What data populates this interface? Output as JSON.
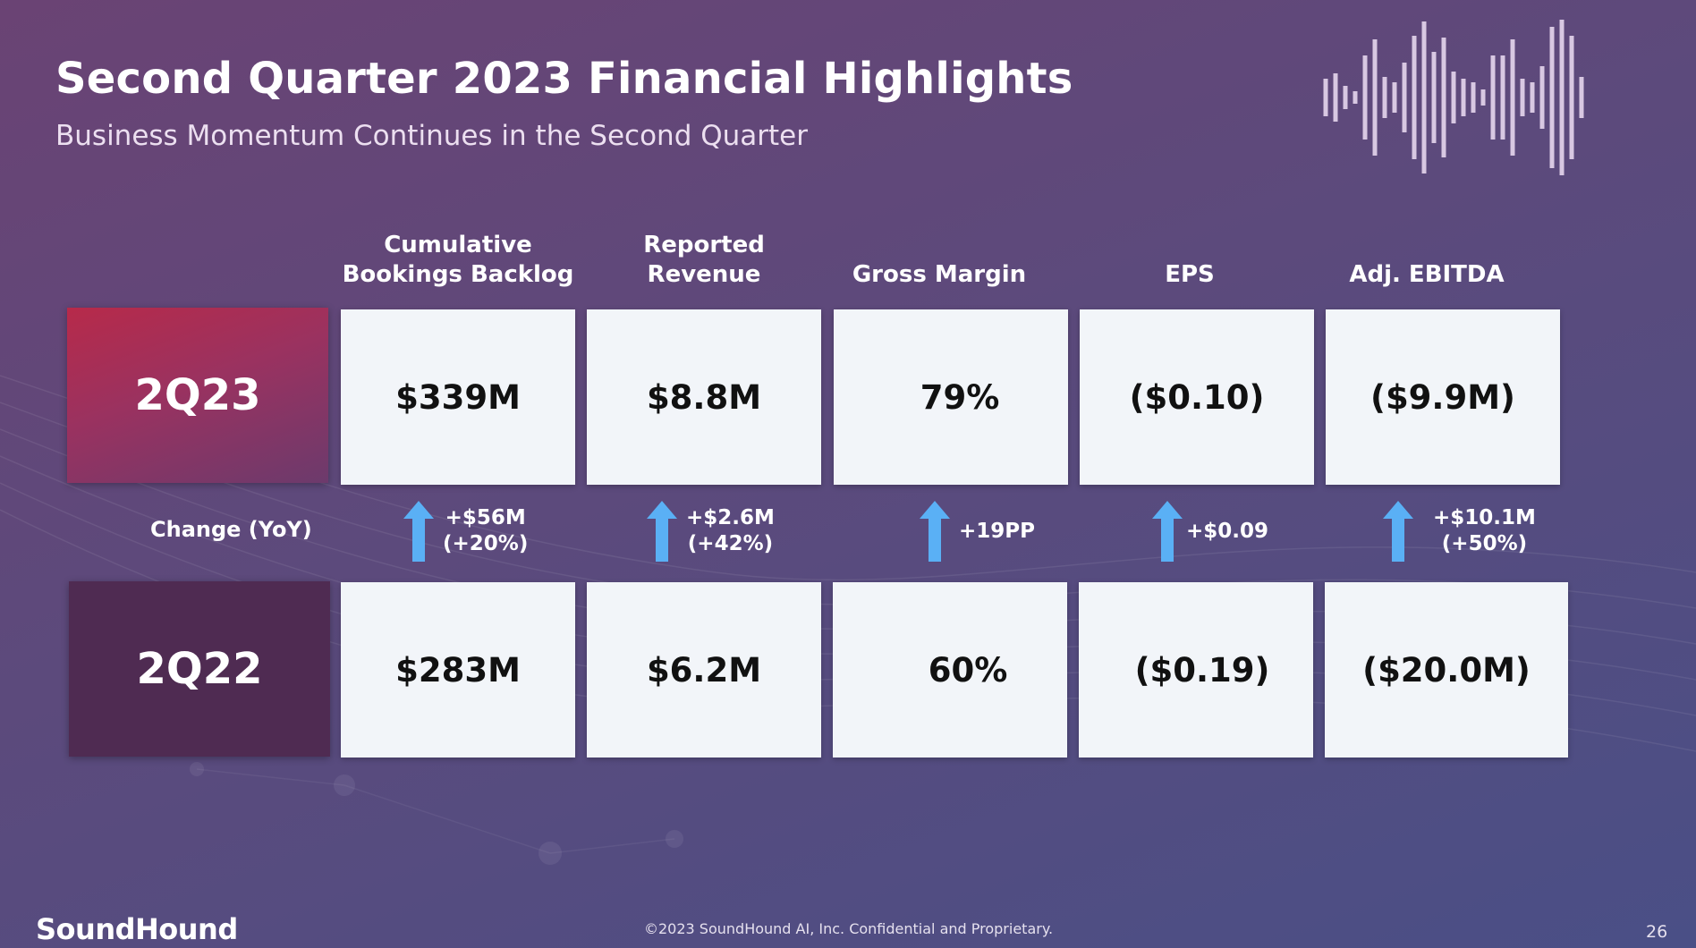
{
  "title": "Second Quarter 2023 Financial Highlights",
  "subtitle": "Business Momentum Continues in the Second Quarter",
  "columns": [
    {
      "line1": "Cumulative",
      "line2": "Bookings Backlog"
    },
    {
      "line1": "Reported",
      "line2": "Revenue"
    },
    {
      "line1": "",
      "line2": "Gross Margin"
    },
    {
      "line1": "",
      "line2": "EPS"
    },
    {
      "line1": "",
      "line2": "Adj. EBITDA"
    }
  ],
  "rows": {
    "current": {
      "label": "2Q23",
      "values": [
        "$339M",
        "$8.8M",
        "79%",
        "($0.10)",
        "($9.9M)"
      ]
    },
    "prior": {
      "label": "2Q22",
      "values": [
        "$283M",
        "$6.2M",
        "60%",
        "($0.19)",
        "($20.0M)"
      ]
    }
  },
  "change": {
    "label": "Change (YoY)",
    "items": [
      {
        "line1": "+$56M",
        "line2": "(+20%)"
      },
      {
        "line1": "+$2.6M",
        "line2": "(+42%)"
      },
      {
        "line1": "+19PP",
        "line2": ""
      },
      {
        "line1": "+$0.09",
        "line2": ""
      },
      {
        "line1": "+$10.1M",
        "line2": "(+50%)"
      }
    ]
  },
  "colors": {
    "arrow": "#5ab0f5",
    "current_label": "#b72a4a",
    "prior_label": "#4f2b52",
    "box": "#f2f5f9"
  },
  "icons": {
    "trend": "up-arrow-icon",
    "brand_graphic": "sound-wave-icon"
  },
  "footer": {
    "logo": "SoundHound",
    "copyright": "©2023 SoundHound AI, Inc. Confidential and Proprietary.",
    "page": "26"
  }
}
